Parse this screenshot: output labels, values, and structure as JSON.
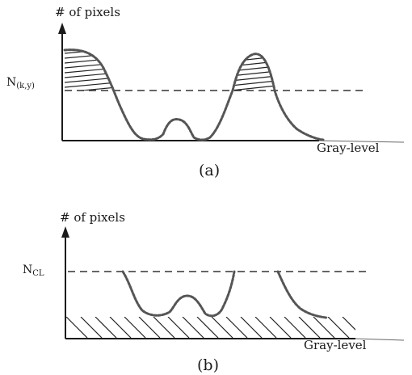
{
  "panel_a": {
    "y_axis_label": "# of pixels",
    "x_axis_label": "Gray-level",
    "threshold_label": "N",
    "threshold_subscript": "(k,y)",
    "caption": "(a)"
  },
  "panel_b": {
    "y_axis_label": "# of pixels",
    "x_axis_label": "Gray-level",
    "threshold_label": "N",
    "threshold_subscript": "CL",
    "caption": "(b)"
  }
}
